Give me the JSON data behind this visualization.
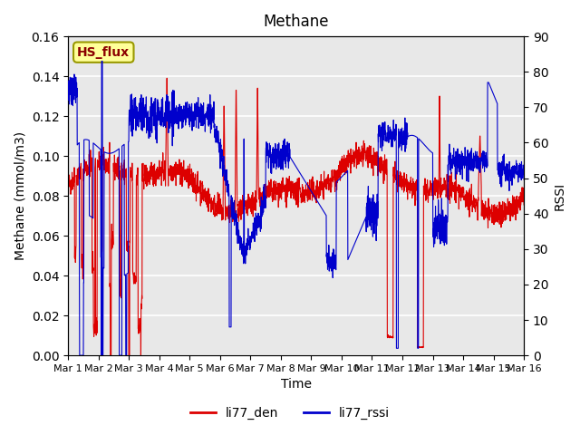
{
  "title": "Methane",
  "ylabel_left": "Methane (mmol/m3)",
  "ylabel_right": "RSSI",
  "xlabel": "Time",
  "ylim_left": [
    0.0,
    0.16
  ],
  "ylim_right": [
    0,
    90
  ],
  "yticks_left": [
    0.0,
    0.02,
    0.04,
    0.06,
    0.08,
    0.1,
    0.12,
    0.14,
    0.16
  ],
  "yticks_right": [
    0,
    10,
    20,
    30,
    40,
    50,
    60,
    70,
    80,
    90
  ],
  "xtick_labels": [
    "Mar 1",
    "Mar 2",
    "Mar 3",
    "Mar 4",
    "Mar 5",
    "Mar 6",
    "Mar 7",
    "Mar 8",
    "Mar 9",
    "Mar 10",
    "Mar 11",
    "Mar 12",
    "Mar 13",
    "Mar 14",
    "Mar 15",
    "Mar 16"
  ],
  "color_red": "#dd0000",
  "color_blue": "#0000cc",
  "legend_entries": [
    "li77_den",
    "li77_rssi"
  ],
  "hs_flux_label": "HS_flux",
  "hs_flux_bg": "#ffff99",
  "hs_flux_border": "#999900",
  "plot_bg": "#e8e8e8",
  "grid_color": "#ffffff",
  "n_points": 2300
}
